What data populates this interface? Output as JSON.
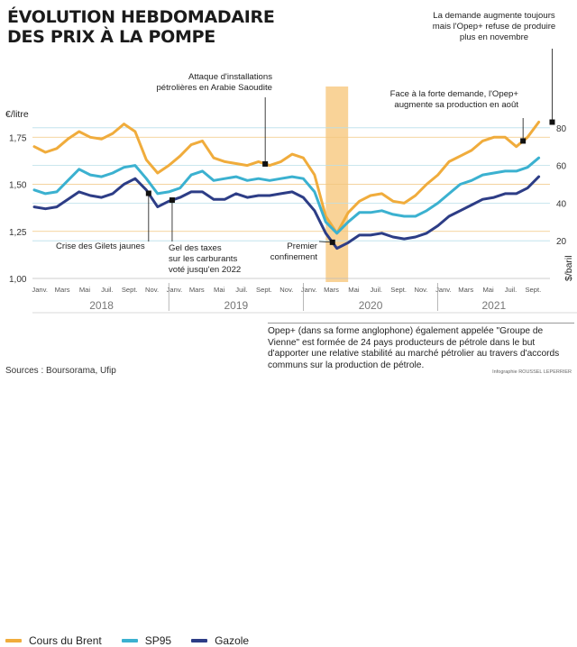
{
  "header": {
    "title_line1": "ÉVOLUTION HEBDOMADAIRE",
    "title_line2": "DES PRIX À LA POMPE"
  },
  "chart_data": {
    "type": "line",
    "left_axis": {
      "label": "€/litre",
      "ticks": [
        "1,00",
        "1,25",
        "1,50",
        "1,75"
      ],
      "range": [
        1.0,
        2.0
      ]
    },
    "right_axis": {
      "label": "$/baril",
      "ticks": [
        "20",
        "40",
        "60",
        "80"
      ],
      "range": [
        0,
        100
      ]
    },
    "months": [
      "Janv.",
      "Mars",
      "Mai",
      "Juil.",
      "Sept.",
      "Nov.",
      "Janv.",
      "Mars",
      "Mai",
      "Juil.",
      "Sept.",
      "Nov.",
      "Janv.",
      "Mars",
      "Mai",
      "Juil.",
      "Sept.",
      "Nov.",
      "Janv.",
      "Mars",
      "Mai",
      "Juil.",
      "Sept."
    ],
    "years": [
      "2018",
      "2019",
      "2020",
      "2021"
    ],
    "highlight_period": [
      "2020-03",
      "2020-04"
    ],
    "series": [
      {
        "name": "Cours du Brent",
        "axis": "right",
        "color": "#f0ac3c",
        "points": [
          [
            0,
            70
          ],
          [
            1,
            67
          ],
          [
            2,
            69
          ],
          [
            3,
            74
          ],
          [
            4,
            78
          ],
          [
            5,
            75
          ],
          [
            6,
            74
          ],
          [
            7,
            77
          ],
          [
            8,
            82
          ],
          [
            9,
            78
          ],
          [
            10,
            63
          ],
          [
            11,
            56
          ],
          [
            12,
            60
          ],
          [
            13,
            65
          ],
          [
            14,
            71
          ],
          [
            15,
            73
          ],
          [
            16,
            64
          ],
          [
            17,
            62
          ],
          [
            18,
            61
          ],
          [
            19,
            60
          ],
          [
            20,
            62
          ],
          [
            21,
            60
          ],
          [
            22,
            62
          ],
          [
            23,
            66
          ],
          [
            24,
            64
          ],
          [
            25,
            55
          ],
          [
            26,
            33
          ],
          [
            27,
            24
          ],
          [
            28,
            35
          ],
          [
            29,
            41
          ],
          [
            30,
            44
          ],
          [
            31,
            45
          ],
          [
            32,
            41
          ],
          [
            33,
            40
          ],
          [
            34,
            44
          ],
          [
            35,
            50
          ],
          [
            36,
            55
          ],
          [
            37,
            62
          ],
          [
            38,
            65
          ],
          [
            39,
            68
          ],
          [
            40,
            73
          ],
          [
            41,
            75
          ],
          [
            42,
            75
          ],
          [
            43,
            70
          ],
          [
            44,
            75
          ],
          [
            45,
            83
          ]
        ]
      },
      {
        "name": "SP95",
        "axis": "left",
        "color": "#3bb1d0",
        "points": [
          [
            0,
            1.47
          ],
          [
            1,
            1.45
          ],
          [
            2,
            1.46
          ],
          [
            3,
            1.52
          ],
          [
            4,
            1.58
          ],
          [
            5,
            1.55
          ],
          [
            6,
            1.54
          ],
          [
            7,
            1.56
          ],
          [
            8,
            1.59
          ],
          [
            9,
            1.6
          ],
          [
            10,
            1.53
          ],
          [
            11,
            1.45
          ],
          [
            12,
            1.46
          ],
          [
            13,
            1.48
          ],
          [
            14,
            1.55
          ],
          [
            15,
            1.57
          ],
          [
            16,
            1.52
          ],
          [
            17,
            1.53
          ],
          [
            18,
            1.54
          ],
          [
            19,
            1.52
          ],
          [
            20,
            1.53
          ],
          [
            21,
            1.52
          ],
          [
            22,
            1.53
          ],
          [
            23,
            1.54
          ],
          [
            24,
            1.53
          ],
          [
            25,
            1.46
          ],
          [
            26,
            1.3
          ],
          [
            27,
            1.24
          ],
          [
            28,
            1.3
          ],
          [
            29,
            1.35
          ],
          [
            30,
            1.35
          ],
          [
            31,
            1.36
          ],
          [
            32,
            1.34
          ],
          [
            33,
            1.33
          ],
          [
            34,
            1.33
          ],
          [
            35,
            1.36
          ],
          [
            36,
            1.4
          ],
          [
            37,
            1.45
          ],
          [
            38,
            1.5
          ],
          [
            39,
            1.52
          ],
          [
            40,
            1.55
          ],
          [
            41,
            1.56
          ],
          [
            42,
            1.57
          ],
          [
            43,
            1.57
          ],
          [
            44,
            1.59
          ],
          [
            45,
            1.64
          ]
        ]
      },
      {
        "name": "Gazole",
        "axis": "left",
        "color": "#2d3d86",
        "points": [
          [
            0,
            1.38
          ],
          [
            1,
            1.37
          ],
          [
            2,
            1.38
          ],
          [
            3,
            1.42
          ],
          [
            4,
            1.46
          ],
          [
            5,
            1.44
          ],
          [
            6,
            1.43
          ],
          [
            7,
            1.45
          ],
          [
            8,
            1.5
          ],
          [
            9,
            1.53
          ],
          [
            10,
            1.47
          ],
          [
            11,
            1.38
          ],
          [
            12,
            1.41
          ],
          [
            13,
            1.43
          ],
          [
            14,
            1.46
          ],
          [
            15,
            1.46
          ],
          [
            16,
            1.42
          ],
          [
            17,
            1.42
          ],
          [
            18,
            1.45
          ],
          [
            19,
            1.43
          ],
          [
            20,
            1.44
          ],
          [
            21,
            1.44
          ],
          [
            22,
            1.45
          ],
          [
            23,
            1.46
          ],
          [
            24,
            1.43
          ],
          [
            25,
            1.36
          ],
          [
            26,
            1.24
          ],
          [
            27,
            1.16
          ],
          [
            28,
            1.19
          ],
          [
            29,
            1.23
          ],
          [
            30,
            1.23
          ],
          [
            31,
            1.24
          ],
          [
            32,
            1.22
          ],
          [
            33,
            1.21
          ],
          [
            34,
            1.22
          ],
          [
            35,
            1.24
          ],
          [
            36,
            1.28
          ],
          [
            37,
            1.33
          ],
          [
            38,
            1.36
          ],
          [
            39,
            1.39
          ],
          [
            40,
            1.42
          ],
          [
            41,
            1.43
          ],
          [
            42,
            1.45
          ],
          [
            43,
            1.45
          ],
          [
            44,
            1.48
          ],
          [
            45,
            1.54
          ]
        ]
      }
    ],
    "annotations": [
      {
        "id": "gilets",
        "series": 2,
        "x": 10.2,
        "lines": [
          "Crise des Gilets jaunes"
        ]
      },
      {
        "id": "gel",
        "series": 2,
        "x": 12.3,
        "lines": [
          "Gel des taxes",
          "sur les carburants",
          "voté jusqu'en 2022"
        ]
      },
      {
        "id": "saoudite",
        "series": 0,
        "x": 20.6,
        "lines": [
          "Attaque d'installations",
          "pétrolières en Arabie Saoudite"
        ]
      },
      {
        "id": "confinement",
        "series": 2,
        "x": 26.6,
        "lines": [
          "Premier",
          "confinement"
        ]
      },
      {
        "id": "aout",
        "series": 0,
        "x": 43.6,
        "lines": [
          "Face à la forte demande, l'Opep+",
          "augmente sa production en août"
        ]
      },
      {
        "id": "novembre",
        "series": 0,
        "x": 46.2,
        "lines": [
          "La demande augmente toujours",
          "mais l'Opep+ refuse de produire",
          "plus en novembre"
        ]
      }
    ]
  },
  "legend": [
    {
      "label": "Cours du Brent",
      "color": "#f0ac3c"
    },
    {
      "label": "SP95",
      "color": "#3bb1d0"
    },
    {
      "label": "Gazole",
      "color": "#2d3d86"
    }
  ],
  "definition": "Opep+ (dans sa forme anglophone) également appelée \"Groupe de Vienne\" est formée de 24 pays producteurs de pétrole dans le but d'apporter une relative stabilité au marché pétrolier au travers d'accords communs sur la production de pétrole.",
  "sources": "Sources : Boursorama, Ufip",
  "credit": "Infographie ROUSSEL LEPERRIER"
}
